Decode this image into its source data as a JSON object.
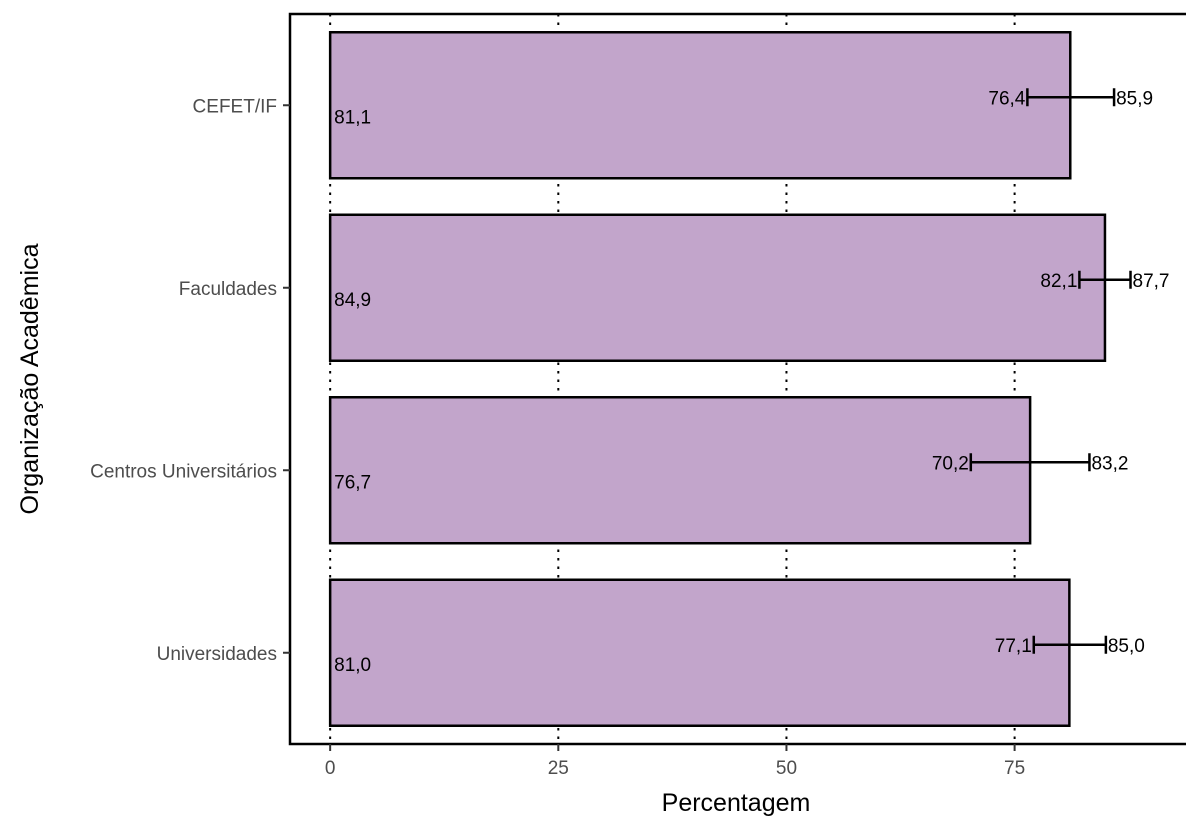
{
  "chart_data": {
    "type": "bar",
    "orientation": "horizontal",
    "xlabel": "Percentagem",
    "ylabel": "Organização Acadêmica",
    "categories": [
      "Universidades",
      "Centros Universitários",
      "Faculdades",
      "CEFET/IF"
    ],
    "values": [
      81.0,
      76.7,
      84.9,
      81.1
    ],
    "value_labels": [
      "81,0",
      "76,7",
      "84,9",
      "81,1"
    ],
    "ci_lower": [
      77.1,
      70.2,
      82.1,
      76.4
    ],
    "ci_lower_labels": [
      "77,1",
      "70,2",
      "82,1",
      "76,4"
    ],
    "ci_upper": [
      85.0,
      83.2,
      87.7,
      85.9
    ],
    "ci_upper_labels": [
      "85,0",
      "83,2",
      "87,7",
      "85,9"
    ],
    "xlim": [
      -4.4,
      94
    ],
    "xticks": [
      0,
      25,
      50,
      75
    ],
    "xtick_labels": [
      "0",
      "25",
      "50",
      "75"
    ],
    "grid": "vertical dotted lines at x ticks",
    "legend": "none",
    "colors": {
      "bar_fill": "#c2a5cb",
      "bar_stroke": "#000000",
      "grid": "#000000",
      "tick_label": "#4d4d4d"
    }
  }
}
